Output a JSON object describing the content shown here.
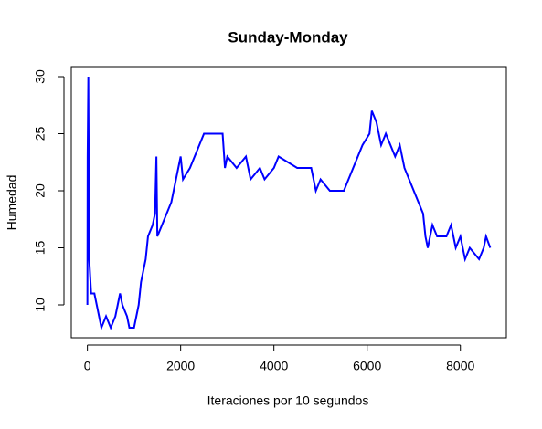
{
  "chart_data": {
    "type": "line",
    "title": "Sunday-Monday",
    "x_label": "Iteraciones por 10 segundos",
    "y_label": "Humedad",
    "xlim": [
      -345.6,
      8985.6
    ],
    "ylim": [
      7.12,
      30.88
    ],
    "xticks": [
      0,
      2000,
      4000,
      6000,
      8000
    ],
    "yticks": [
      10,
      15,
      20,
      25,
      30
    ],
    "series": [
      {
        "name": "Humedad",
        "color": "#0000ff",
        "x": [
          0,
          5,
          20,
          40,
          80,
          150,
          200,
          250,
          300,
          400,
          500,
          600,
          650,
          700,
          750,
          850,
          900,
          1000,
          1050,
          1100,
          1150,
          1200,
          1250,
          1300,
          1400,
          1450,
          1480,
          1500,
          1600,
          1700,
          1800,
          1850,
          1900,
          2000,
          2050,
          2200,
          2300,
          2400,
          2500,
          2900,
          2950,
          3000,
          3200,
          3400,
          3500,
          3700,
          3800,
          4000,
          4100,
          4500,
          4800,
          4900,
          5000,
          5200,
          5500,
          5600,
          5700,
          5800,
          5900,
          6050,
          6100,
          6200,
          6300,
          6400,
          6500,
          6600,
          6700,
          6800,
          6900,
          7000,
          7100,
          7200,
          7250,
          7300,
          7400,
          7500,
          7700,
          7800,
          7900,
          8000,
          8100,
          8200,
          8400,
          8500,
          8550,
          8640
        ],
        "values": [
          10,
          23,
          30,
          14,
          11,
          11,
          10,
          9,
          8,
          9,
          8,
          9,
          10,
          11,
          10,
          9,
          8,
          8,
          9,
          10,
          12,
          13,
          14,
          16,
          17,
          18,
          23,
          16,
          17,
          18,
          19,
          20,
          21,
          23,
          21,
          22,
          23,
          24,
          25,
          25,
          22,
          23,
          22,
          23,
          21,
          22,
          21,
          22,
          23,
          22,
          22,
          20,
          21,
          20,
          20,
          21,
          22,
          23,
          24,
          25,
          27,
          26,
          24,
          25,
          24,
          23,
          24,
          22,
          21,
          20,
          19,
          18,
          16,
          15,
          17,
          16,
          16,
          17,
          15,
          16,
          14,
          15,
          14,
          15,
          16,
          15
        ]
      }
    ]
  }
}
